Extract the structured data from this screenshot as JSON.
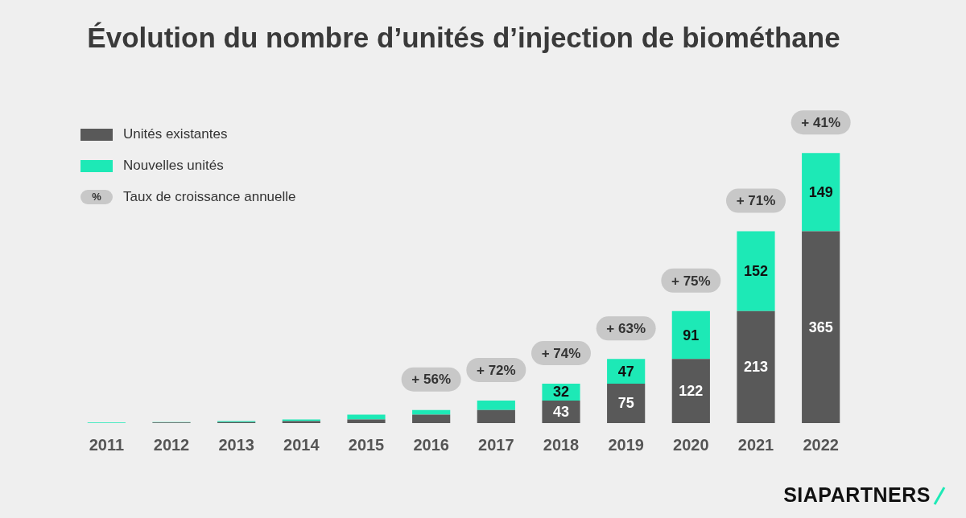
{
  "chart_data": {
    "type": "bar",
    "title": "Évolution du nombre d’unités d’injection de biométhane",
    "categories": [
      "2011",
      "2012",
      "2013",
      "2014",
      "2015",
      "2016",
      "2017",
      "2018",
      "2019",
      "2020",
      "2021",
      "2022"
    ],
    "stacked": true,
    "data_labels": true,
    "series": [
      {
        "name": "Unités existantes",
        "color": "#595959",
        "values": [
          0,
          1,
          2,
          4,
          7,
          16,
          25,
          43,
          75,
          122,
          213,
          365
        ],
        "value_labels": [
          null,
          null,
          null,
          null,
          null,
          null,
          null,
          "43",
          "75",
          "122",
          "213",
          "365"
        ]
      },
      {
        "name": "Nouvelles unités",
        "color": "#1de9b6",
        "values": [
          1,
          1,
          2,
          3,
          9,
          9,
          18,
          32,
          47,
          91,
          152,
          149
        ],
        "value_labels": [
          null,
          null,
          null,
          null,
          null,
          null,
          null,
          "32",
          "47",
          "91",
          "152",
          "149"
        ]
      }
    ],
    "growth_rates": {
      "name": "Taux de croissance annuelle",
      "symbol": "%",
      "values": [
        null,
        null,
        null,
        null,
        null,
        56,
        72,
        74,
        63,
        75,
        71,
        41
      ],
      "value_labels": [
        null,
        null,
        null,
        null,
        null,
        "+ 56%",
        "+ 72%",
        "+ 74%",
        "+ 63%",
        "+ 75%",
        "+ 71%",
        "+ 41%"
      ]
    },
    "ylim": [
      0,
      600
    ],
    "grid": false,
    "tick_labels": "x",
    "legend": "top-left",
    "logo": "SIAPARTNERS"
  }
}
